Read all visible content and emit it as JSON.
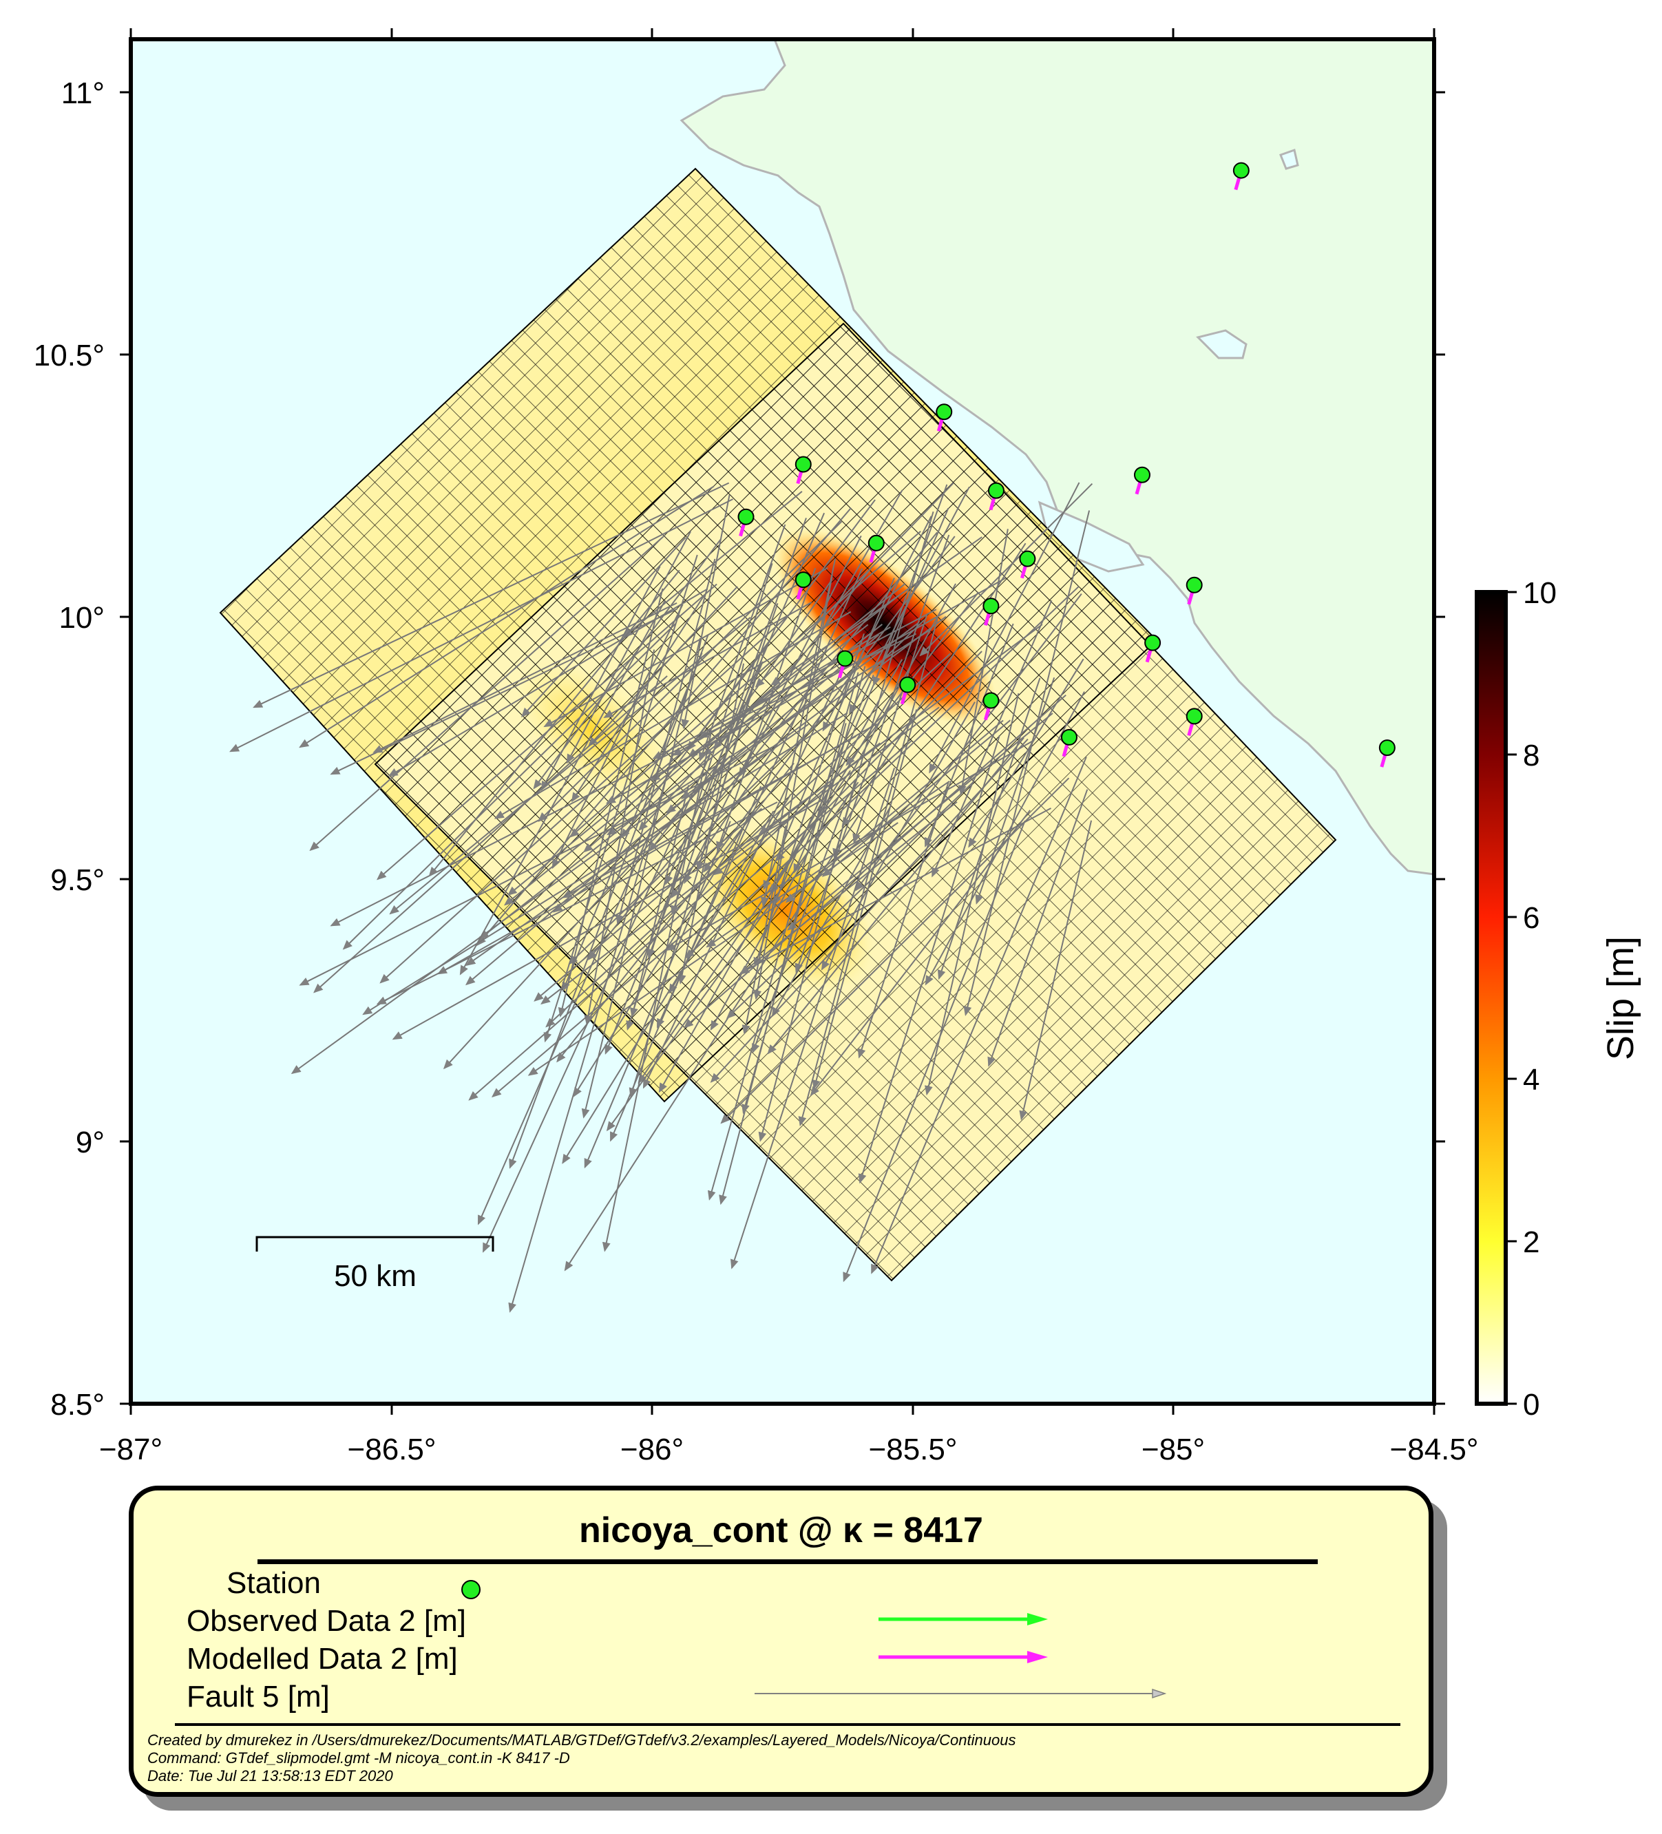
{
  "map": {
    "lon_range": [
      -87,
      -84.5
    ],
    "lat_range": [
      8.5,
      11.1
    ],
    "x_tick_labels": [
      "−87°",
      "−86.5°",
      "−86°",
      "−85.5°",
      "−85°",
      "−84.5°"
    ],
    "y_tick_labels": [
      "8.5°",
      "9°",
      "9.5°",
      "10°",
      "10.5°",
      "11°"
    ],
    "ocean_color": "#e6ffff",
    "land_color": "#e9fde6",
    "coast_color": "#b4b4b4",
    "scale_bar_label": "50 km"
  },
  "colorbar": {
    "title": "Slip [m]",
    "tick_labels": [
      "0",
      "2",
      "4",
      "6",
      "8",
      "10"
    ],
    "range": [
      0,
      10
    ],
    "colors": [
      "#ffffff",
      "#ffff30",
      "#ff9900",
      "#ff2000",
      "#800000",
      "#000000"
    ]
  },
  "stations": [
    {
      "lon": -84.87,
      "lat": 10.85
    },
    {
      "lon": -85.44,
      "lat": 10.39
    },
    {
      "lon": -85.06,
      "lat": 10.27
    },
    {
      "lon": -85.71,
      "lat": 10.29
    },
    {
      "lon": -85.34,
      "lat": 10.24
    },
    {
      "lon": -85.82,
      "lat": 10.19
    },
    {
      "lon": -85.57,
      "lat": 10.14
    },
    {
      "lon": -85.28,
      "lat": 10.11
    },
    {
      "lon": -85.71,
      "lat": 10.07
    },
    {
      "lon": -84.96,
      "lat": 10.06
    },
    {
      "lon": -85.35,
      "lat": 10.02
    },
    {
      "lon": -85.04,
      "lat": 9.95
    },
    {
      "lon": -85.63,
      "lat": 9.92
    },
    {
      "lon": -85.51,
      "lat": 9.87
    },
    {
      "lon": -85.35,
      "lat": 9.84
    },
    {
      "lon": -84.96,
      "lat": 9.81
    },
    {
      "lon": -85.2,
      "lat": 9.77
    },
    {
      "lon": -84.59,
      "lat": 9.75
    }
  ],
  "legend": {
    "title": "nicoya_cont @ κ = 8417",
    "items": [
      {
        "label": "Station"
      },
      {
        "label": "Observed Data 2 [m]"
      },
      {
        "label": "Modelled Data 2 [m]"
      },
      {
        "label": "Fault 5 [m]"
      }
    ],
    "colors": {
      "station": "#22ee22",
      "observed": "#22ff22",
      "modelled": "#ff22ff",
      "fault": "#808080"
    },
    "footer": [
      "Created by dmurekez in /Users/dmurekez/Documents/MATLAB/GTDef/GTdef/v3.2/examples/Layered_Models/Nicoya/Continuous",
      "Command: GTdef_slipmodel.gmt -M nicoya_cont.in -K 8417 -D",
      "Date: Tue Jul 21 13:58:13 EDT 2020"
    ]
  }
}
